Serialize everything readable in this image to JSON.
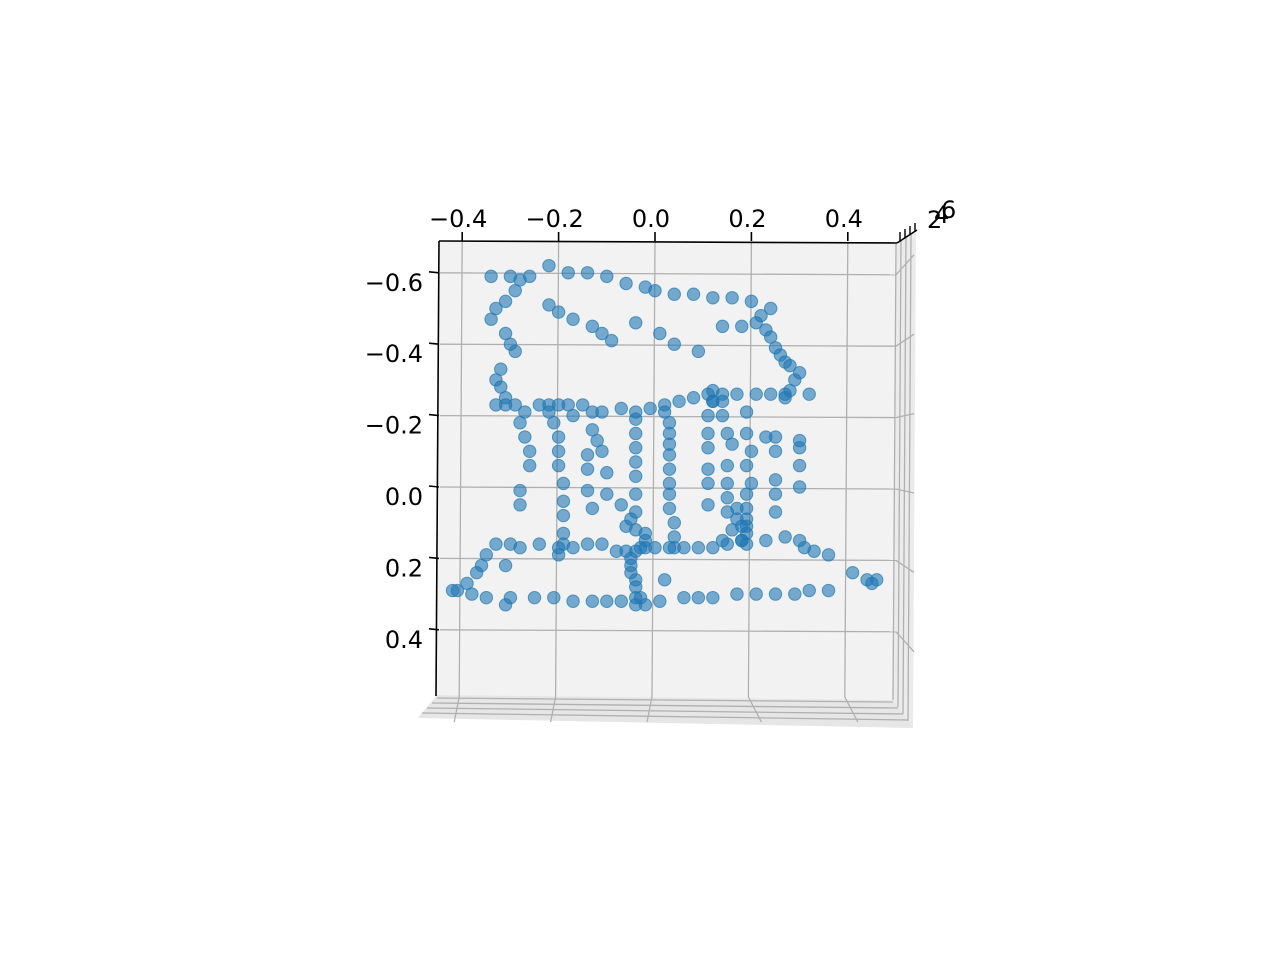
{
  "chart_data": {
    "type": "scatter",
    "projection": "3d",
    "view": "top-down",
    "title": "",
    "xlabel": "",
    "ylabel": "",
    "zlabel": "",
    "grid": true,
    "legend": "none",
    "colors": {
      "marker": "#1f77b4",
      "pane": "#f2f2f2",
      "grid": "#b0b0b0",
      "axis": "#000000"
    },
    "xlim": [
      -0.5,
      0.5
    ],
    "ylim": [
      -0.67,
      0.57
    ],
    "x_ticks": [
      -0.4,
      -0.2,
      0.0,
      0.2,
      0.4
    ],
    "x_tick_labels": [
      "−0.4",
      "−0.2",
      "0.0",
      "0.2",
      "0.4"
    ],
    "y_ticks": [
      -0.6,
      -0.4,
      -0.2,
      0.0,
      0.2,
      0.4
    ],
    "y_tick_labels": [
      "−0.6",
      "−0.4",
      "−0.2",
      "0.0",
      "0.2",
      "0.4"
    ],
    "z_tick_labels_overlapping": [
      "2",
      "4",
      "6"
    ],
    "series": [
      {
        "points": [
          [
            -0.22,
            -0.62
          ],
          [
            -0.34,
            -0.59
          ],
          [
            -0.3,
            -0.59
          ],
          [
            -0.26,
            -0.59
          ],
          [
            -0.18,
            -0.6
          ],
          [
            -0.14,
            -0.6
          ],
          [
            -0.1,
            -0.59
          ],
          [
            -0.06,
            -0.57
          ],
          [
            -0.02,
            -0.56
          ],
          [
            0.0,
            -0.55
          ],
          [
            0.04,
            -0.54
          ],
          [
            0.08,
            -0.54
          ],
          [
            0.12,
            -0.53
          ],
          [
            0.16,
            -0.53
          ],
          [
            0.2,
            -0.52
          ],
          [
            0.24,
            -0.5
          ],
          [
            -0.28,
            -0.58
          ],
          [
            -0.29,
            -0.55
          ],
          [
            -0.31,
            -0.52
          ],
          [
            -0.33,
            -0.5
          ],
          [
            -0.34,
            -0.47
          ],
          [
            -0.22,
            -0.51
          ],
          [
            -0.2,
            -0.49
          ],
          [
            -0.17,
            -0.47
          ],
          [
            -0.13,
            -0.45
          ],
          [
            -0.11,
            -0.43
          ],
          [
            -0.09,
            -0.41
          ],
          [
            -0.04,
            -0.46
          ],
          [
            0.01,
            -0.43
          ],
          [
            0.04,
            -0.4
          ],
          [
            0.09,
            -0.38
          ],
          [
            0.14,
            -0.45
          ],
          [
            0.18,
            -0.45
          ],
          [
            0.21,
            -0.46
          ],
          [
            0.22,
            -0.48
          ],
          [
            0.23,
            -0.44
          ],
          [
            0.24,
            -0.42
          ],
          [
            0.25,
            -0.39
          ],
          [
            0.26,
            -0.37
          ],
          [
            0.27,
            -0.35
          ],
          [
            0.28,
            -0.34
          ],
          [
            0.3,
            -0.32
          ],
          [
            0.29,
            -0.3
          ],
          [
            0.28,
            -0.27
          ],
          [
            0.27,
            -0.25
          ],
          [
            -0.31,
            -0.43
          ],
          [
            -0.3,
            -0.4
          ],
          [
            -0.29,
            -0.38
          ],
          [
            -0.32,
            -0.33
          ],
          [
            -0.33,
            -0.3
          ],
          [
            -0.32,
            -0.28
          ],
          [
            -0.31,
            -0.25
          ],
          [
            -0.33,
            -0.23
          ],
          [
            -0.31,
            -0.23
          ],
          [
            -0.29,
            -0.23
          ],
          [
            -0.24,
            -0.23
          ],
          [
            -0.22,
            -0.23
          ],
          [
            -0.2,
            -0.23
          ],
          [
            -0.18,
            -0.23
          ],
          [
            -0.15,
            -0.23
          ],
          [
            -0.07,
            -0.22
          ],
          [
            -0.04,
            -0.21
          ],
          [
            -0.01,
            -0.22
          ],
          [
            0.02,
            -0.23
          ],
          [
            0.05,
            -0.24
          ],
          [
            0.08,
            -0.25
          ],
          [
            0.11,
            -0.26
          ],
          [
            0.14,
            -0.26
          ],
          [
            0.17,
            -0.26
          ],
          [
            0.21,
            -0.26
          ],
          [
            0.24,
            -0.26
          ],
          [
            0.27,
            -0.26
          ],
          [
            0.32,
            -0.26
          ],
          [
            -0.27,
            -0.21
          ],
          [
            -0.28,
            -0.18
          ],
          [
            -0.27,
            -0.14
          ],
          [
            -0.26,
            -0.1
          ],
          [
            -0.26,
            -0.06
          ],
          [
            -0.28,
            0.01
          ],
          [
            -0.28,
            0.05
          ],
          [
            -0.22,
            -0.21
          ],
          [
            -0.21,
            -0.18
          ],
          [
            -0.2,
            -0.14
          ],
          [
            -0.2,
            -0.1
          ],
          [
            -0.2,
            -0.06
          ],
          [
            -0.19,
            -0.01
          ],
          [
            -0.19,
            0.04
          ],
          [
            -0.19,
            0.08
          ],
          [
            -0.19,
            0.13
          ],
          [
            -0.19,
            0.16
          ],
          [
            -0.17,
            -0.2
          ],
          [
            -0.13,
            -0.21
          ],
          [
            -0.11,
            -0.21
          ],
          [
            -0.13,
            -0.16
          ],
          [
            -0.12,
            -0.13
          ],
          [
            -0.11,
            -0.1
          ],
          [
            -0.1,
            -0.04
          ],
          [
            -0.1,
            0.02
          ],
          [
            -0.14,
            -0.09
          ],
          [
            -0.14,
            -0.05
          ],
          [
            -0.14,
            0.01
          ],
          [
            -0.13,
            0.06
          ],
          [
            -0.04,
            -0.19
          ],
          [
            -0.04,
            -0.15
          ],
          [
            -0.04,
            -0.11
          ],
          [
            -0.04,
            -0.07
          ],
          [
            -0.04,
            -0.03
          ],
          [
            -0.04,
            0.02
          ],
          [
            -0.04,
            0.07
          ],
          [
            -0.04,
            0.12
          ],
          [
            -0.04,
            0.18
          ],
          [
            -0.07,
            0.05
          ],
          [
            -0.05,
            0.09
          ],
          [
            -0.06,
            0.11
          ],
          [
            -0.02,
            0.13
          ],
          [
            -0.02,
            0.15
          ],
          [
            -0.03,
            0.17
          ],
          [
            0.02,
            -0.21
          ],
          [
            0.03,
            -0.18
          ],
          [
            0.03,
            -0.15
          ],
          [
            0.03,
            -0.12
          ],
          [
            0.03,
            -0.09
          ],
          [
            0.03,
            -0.05
          ],
          [
            0.03,
            -0.01
          ],
          [
            0.03,
            0.02
          ],
          [
            0.03,
            0.06
          ],
          [
            0.04,
            0.1
          ],
          [
            0.04,
            0.14
          ],
          [
            0.04,
            0.17
          ],
          [
            0.12,
            -0.24
          ],
          [
            0.11,
            -0.2
          ],
          [
            0.11,
            -0.15
          ],
          [
            0.11,
            -0.11
          ],
          [
            0.11,
            -0.05
          ],
          [
            0.11,
            -0.01
          ],
          [
            0.11,
            0.05
          ],
          [
            0.14,
            -0.24
          ],
          [
            0.14,
            -0.2
          ],
          [
            0.15,
            -0.15
          ],
          [
            0.16,
            -0.12
          ],
          [
            0.15,
            -0.06
          ],
          [
            0.15,
            -0.01
          ],
          [
            0.15,
            0.03
          ],
          [
            0.17,
            0.06
          ],
          [
            0.17,
            0.09
          ],
          [
            0.16,
            0.12
          ],
          [
            0.14,
            0.15
          ],
          [
            0.19,
            -0.21
          ],
          [
            0.19,
            -0.15
          ],
          [
            0.2,
            -0.1
          ],
          [
            0.19,
            -0.06
          ],
          [
            0.2,
            -0.01
          ],
          [
            0.19,
            0.02
          ],
          [
            0.19,
            0.06
          ],
          [
            0.19,
            0.09
          ],
          [
            0.19,
            0.11
          ],
          [
            0.19,
            0.13
          ],
          [
            0.18,
            0.15
          ],
          [
            0.23,
            -0.14
          ],
          [
            0.25,
            -0.14
          ],
          [
            0.25,
            -0.1
          ],
          [
            0.25,
            -0.02
          ],
          [
            0.25,
            0.02
          ],
          [
            0.25,
            0.07
          ],
          [
            0.3,
            -0.13
          ],
          [
            0.3,
            -0.11
          ],
          [
            0.3,
            -0.06
          ],
          [
            0.3,
            0.0
          ],
          [
            -0.33,
            0.16
          ],
          [
            -0.3,
            0.16
          ],
          [
            -0.28,
            0.17
          ],
          [
            -0.24,
            0.16
          ],
          [
            -0.2,
            0.17
          ],
          [
            -0.17,
            0.17
          ],
          [
            -0.14,
            0.16
          ],
          [
            -0.11,
            0.16
          ],
          [
            -0.08,
            0.18
          ],
          [
            -0.06,
            0.18
          ],
          [
            -0.02,
            0.17
          ],
          [
            0.0,
            0.17
          ],
          [
            0.03,
            0.17
          ],
          [
            0.06,
            0.17
          ],
          [
            0.09,
            0.17
          ],
          [
            0.12,
            0.17
          ],
          [
            0.15,
            0.16
          ],
          [
            0.18,
            0.15
          ],
          [
            0.19,
            0.16
          ],
          [
            0.23,
            0.15
          ],
          [
            0.27,
            0.14
          ],
          [
            0.3,
            0.15
          ],
          [
            0.31,
            0.17
          ],
          [
            0.33,
            0.18
          ],
          [
            0.36,
            0.19
          ],
          [
            -0.35,
            0.19
          ],
          [
            -0.36,
            0.22
          ],
          [
            -0.37,
            0.24
          ],
          [
            -0.39,
            0.27
          ],
          [
            -0.41,
            0.29
          ],
          [
            -0.42,
            0.29
          ],
          [
            -0.38,
            0.3
          ],
          [
            -0.35,
            0.31
          ],
          [
            -0.31,
            0.22
          ],
          [
            -0.2,
            0.19
          ],
          [
            -0.3,
            0.31
          ],
          [
            -0.25,
            0.31
          ],
          [
            -0.21,
            0.31
          ],
          [
            -0.17,
            0.32
          ],
          [
            -0.13,
            0.32
          ],
          [
            -0.1,
            0.32
          ],
          [
            -0.07,
            0.32
          ],
          [
            -0.04,
            0.33
          ],
          [
            -0.02,
            0.33
          ],
          [
            0.01,
            0.32
          ],
          [
            0.06,
            0.31
          ],
          [
            0.09,
            0.31
          ],
          [
            0.12,
            0.31
          ],
          [
            0.17,
            0.3
          ],
          [
            0.21,
            0.3
          ],
          [
            0.25,
            0.3
          ],
          [
            0.29,
            0.3
          ],
          [
            0.32,
            0.29
          ],
          [
            0.36,
            0.29
          ],
          [
            -0.05,
            0.2
          ],
          [
            -0.05,
            0.22
          ],
          [
            -0.05,
            0.24
          ],
          [
            -0.04,
            0.26
          ],
          [
            -0.04,
            0.28
          ],
          [
            -0.04,
            0.31
          ],
          [
            -0.03,
            0.31
          ],
          [
            0.02,
            0.26
          ],
          [
            -0.31,
            0.33
          ],
          [
            0.41,
            0.24
          ],
          [
            0.44,
            0.26
          ],
          [
            0.46,
            0.26
          ],
          [
            0.45,
            0.27
          ],
          [
            0.12,
            -0.27
          ],
          [
            0.12,
            -0.24
          ],
          [
            0.15,
            0.07
          ],
          [
            0.18,
            0.11
          ]
        ]
      }
    ]
  }
}
